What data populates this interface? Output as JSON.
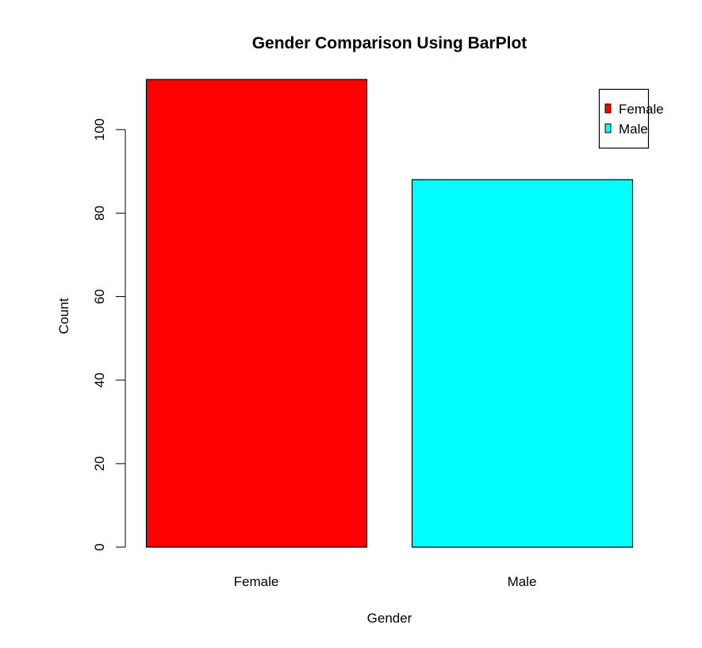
{
  "chart_data": {
    "type": "bar",
    "title": "Gender Comparison Using BarPlot",
    "xlabel": "Gender",
    "ylabel": "Count",
    "categories": [
      "Female",
      "Male"
    ],
    "values": [
      112,
      88
    ],
    "colors": [
      "#ff0000",
      "#00ffff"
    ],
    "ylim": [
      0,
      112
    ],
    "yticks": [
      0,
      20,
      40,
      60,
      80,
      100
    ],
    "legend": {
      "placement": "top-right",
      "entries": [
        {
          "label": "Female",
          "color": "#ff0000"
        },
        {
          "label": "Male",
          "color": "#00ffff"
        }
      ]
    }
  }
}
